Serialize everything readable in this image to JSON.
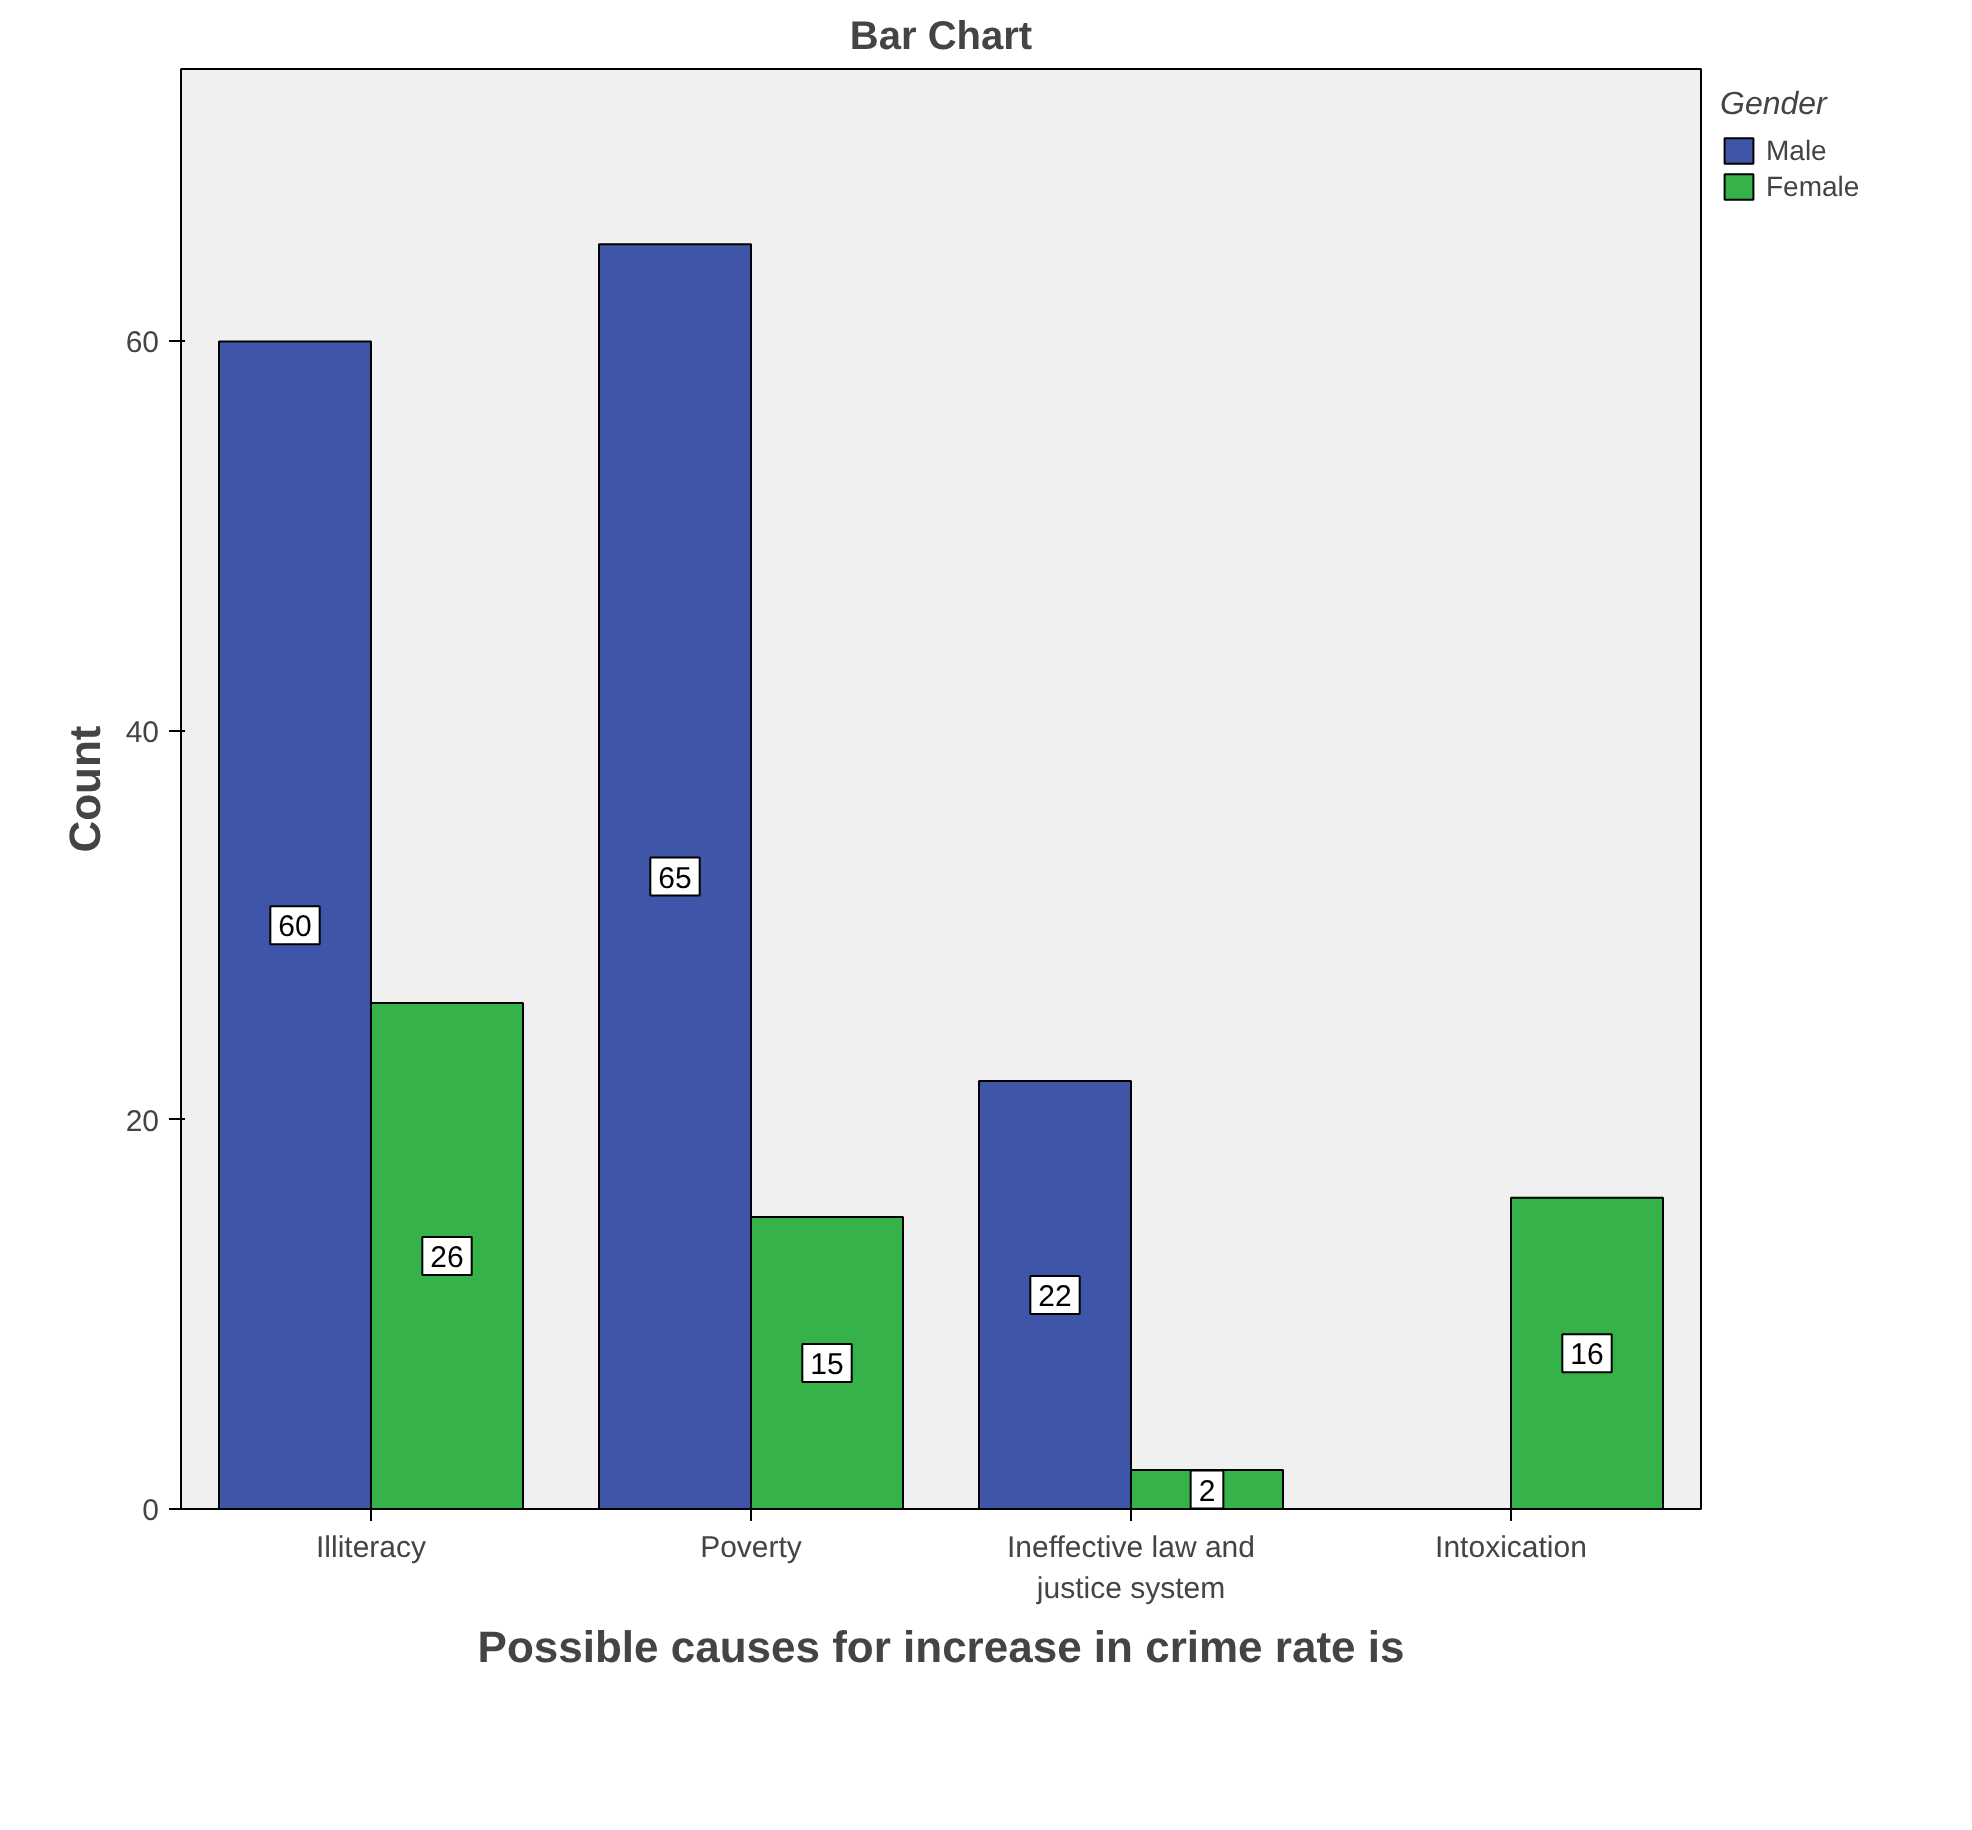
{
  "chart_data": {
    "type": "bar",
    "title": "Bar Chart",
    "xlabel": "Possible causes for increase in crime rate is",
    "ylabel": "Count",
    "categories": [
      "Illiteracy",
      "Poverty",
      "Ineffective law and justice system",
      "Intoxication"
    ],
    "series": [
      {
        "name": "Male",
        "color": "#3f55a8",
        "values": [
          60,
          65,
          22,
          null
        ]
      },
      {
        "name": "Female",
        "color": "#35b34a",
        "values": [
          26,
          15,
          2,
          16
        ]
      }
    ],
    "legend_title": "Gender",
    "legend": "top right",
    "ylim": [
      0,
      74
    ],
    "yticks": [
      0,
      20,
      40,
      60
    ],
    "grid": false,
    "data_labels": true
  }
}
